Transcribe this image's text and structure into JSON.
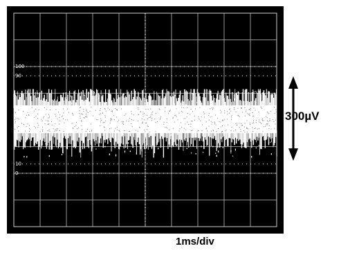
{
  "chart_data": {
    "type": "scatter",
    "title": "",
    "xlabel": "1ms/div",
    "ylabel": "",
    "grid": true,
    "graticule": {
      "x_divisions": 10,
      "y_divisions": 8
    },
    "xlim": [
      0,
      10
    ],
    "ylim": [
      0,
      8
    ],
    "percent_markers": [
      {
        "label": "100",
        "level_div": 6.0
      },
      {
        "label": "90",
        "level_div": 5.65
      },
      {
        "label": "10",
        "level_div": 2.35
      },
      {
        "label": "0",
        "level_div": 2.0
      }
    ],
    "signal": {
      "description_level_center_div": 4.0,
      "band_top_div": 5.0,
      "band_bottom_div": 3.0,
      "dense_top_div": 4.65,
      "dense_bottom_div": 3.4
    },
    "annotation": {
      "text": "300µV",
      "arrow": "double-vertical"
    },
    "colors": {
      "screen": "#000000",
      "trace": "#ffffff",
      "grid": "#ffffff",
      "frame": "#000000"
    }
  }
}
